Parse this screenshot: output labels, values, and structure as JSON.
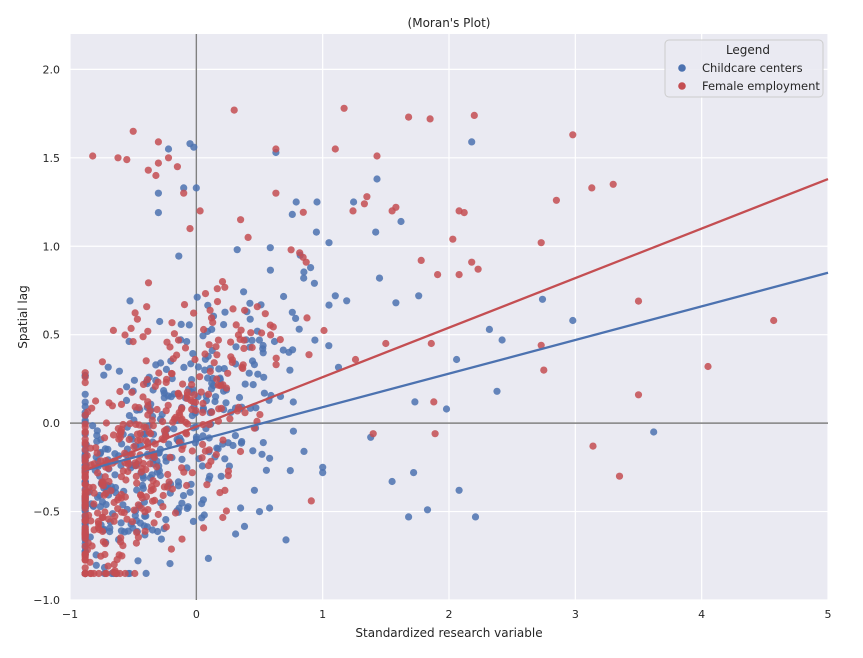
{
  "chart_data": {
    "type": "scatter",
    "title": "(Moran's Plot)",
    "xlabel": "Standardized research variable",
    "ylabel": "Spatial lag",
    "xlim": [
      -1,
      5
    ],
    "ylim": [
      -1.0,
      2.2
    ],
    "xticks": [
      -1,
      0,
      1,
      2,
      3,
      4,
      5
    ],
    "xtick_labels": [
      "−1",
      "0",
      "1",
      "2",
      "3",
      "4",
      "5"
    ],
    "yticks": [
      -1.0,
      -0.5,
      0.0,
      0.5,
      1.0,
      1.5,
      2.0
    ],
    "ytick_labels": [
      "−1.0",
      "−0.5",
      "0.0",
      "0.5",
      "1.0",
      "1.5",
      "2.0"
    ],
    "grid": true,
    "background_color": "#eaeaf2",
    "reference_lines": {
      "x": 0,
      "y": 0,
      "color": "#808080"
    },
    "legend": {
      "title": "Legend",
      "position": "top-right",
      "entries": [
        "Childcare centers",
        "Female employment"
      ]
    },
    "series": [
      {
        "name": "Childcare centers",
        "color": "#4c72b0",
        "fit_line": {
          "slope": 0.19,
          "intercept": -0.1,
          "x_range": [
            -0.9,
            5.0
          ]
        },
        "cluster": {
          "n": 430,
          "x_mean": -0.35,
          "x_sd": 0.55,
          "seed": 11
        },
        "points": [
          [
            -0.05,
            1.58
          ],
          [
            -0.02,
            1.56
          ],
          [
            0.63,
            1.53
          ],
          [
            2.18,
            1.59
          ],
          [
            1.43,
            1.38
          ],
          [
            -0.22,
            1.55
          ],
          [
            -0.3,
            1.3
          ],
          [
            -0.1,
            1.33
          ],
          [
            0.0,
            1.33
          ],
          [
            0.76,
            1.18
          ],
          [
            1.62,
            1.14
          ],
          [
            -0.3,
            1.19
          ],
          [
            0.95,
            1.08
          ],
          [
            1.05,
            1.02
          ],
          [
            1.42,
            1.08
          ],
          [
            0.85,
            0.82
          ],
          [
            1.1,
            0.72
          ],
          [
            1.45,
            0.82
          ],
          [
            1.76,
            0.72
          ],
          [
            1.58,
            0.68
          ],
          [
            2.32,
            0.53
          ],
          [
            2.42,
            0.47
          ],
          [
            2.74,
            0.7
          ],
          [
            2.98,
            0.58
          ],
          [
            2.06,
            0.36
          ],
          [
            1.73,
            0.12
          ],
          [
            1.98,
            0.08
          ],
          [
            2.38,
            0.18
          ],
          [
            3.62,
            -0.05
          ],
          [
            1.38,
            -0.08
          ],
          [
            1.72,
            -0.28
          ],
          [
            1.55,
            -0.33
          ],
          [
            1.68,
            -0.53
          ],
          [
            1.83,
            -0.49
          ],
          [
            2.08,
            -0.38
          ],
          [
            2.21,
            -0.53
          ],
          [
            0.71,
            -0.66
          ],
          [
            0.5,
            -0.5
          ],
          [
            0.58,
            -0.48
          ],
          [
            0.46,
            -0.38
          ],
          [
            1.0,
            -0.28
          ],
          [
            1.0,
            -0.25
          ],
          [
            0.35,
            -0.48
          ],
          [
            0.53,
            -0.11
          ]
        ]
      },
      {
        "name": "Female employment",
        "color": "#c44e52",
        "fit_line": {
          "slope": 0.28,
          "intercept": -0.02,
          "x_range": [
            -0.9,
            5.0
          ]
        },
        "cluster": {
          "n": 430,
          "x_mean": -0.4,
          "x_sd": 0.48,
          "seed": 29
        },
        "points": [
          [
            -0.5,
            1.65
          ],
          [
            -0.62,
            1.5
          ],
          [
            -0.55,
            1.49
          ],
          [
            -0.82,
            1.51
          ],
          [
            -0.3,
            1.59
          ],
          [
            -0.22,
            1.5
          ],
          [
            -0.3,
            1.47
          ],
          [
            -0.15,
            1.45
          ],
          [
            -0.32,
            1.4
          ],
          [
            -0.38,
            1.43
          ],
          [
            0.3,
            1.77
          ],
          [
            1.17,
            1.78
          ],
          [
            1.68,
            1.73
          ],
          [
            1.85,
            1.72
          ],
          [
            2.2,
            1.74
          ],
          [
            1.1,
            1.55
          ],
          [
            1.43,
            1.51
          ],
          [
            0.63,
            1.55
          ],
          [
            0.63,
            1.3
          ],
          [
            1.35,
            1.28
          ],
          [
            1.33,
            1.24
          ],
          [
            1.58,
            1.22
          ],
          [
            1.24,
            1.2
          ],
          [
            1.55,
            1.2
          ],
          [
            2.08,
            1.2
          ],
          [
            2.12,
            1.19
          ],
          [
            2.85,
            1.26
          ],
          [
            2.98,
            1.63
          ],
          [
            3.13,
            1.33
          ],
          [
            3.3,
            1.35
          ],
          [
            2.73,
            1.02
          ],
          [
            2.03,
            1.04
          ],
          [
            1.78,
            0.92
          ],
          [
            1.91,
            0.84
          ],
          [
            2.08,
            0.84
          ],
          [
            2.23,
            0.87
          ],
          [
            2.18,
            0.91
          ],
          [
            3.5,
            0.69
          ],
          [
            4.57,
            0.58
          ],
          [
            4.05,
            0.32
          ],
          [
            3.5,
            0.16
          ],
          [
            2.73,
            0.44
          ],
          [
            2.75,
            0.3
          ],
          [
            1.88,
            0.12
          ],
          [
            1.89,
            -0.06
          ],
          [
            3.14,
            -0.13
          ],
          [
            3.35,
            -0.3
          ],
          [
            1.86,
            0.45
          ],
          [
            1.5,
            0.45
          ],
          [
            1.26,
            0.36
          ],
          [
            1.4,
            -0.06
          ],
          [
            0.91,
            -0.44
          ],
          [
            0.35,
            1.15
          ],
          [
            -0.1,
            1.3
          ],
          [
            0.03,
            1.2
          ],
          [
            -0.05,
            1.1
          ],
          [
            0.75,
            0.98
          ],
          [
            0.87,
            0.91
          ]
        ]
      }
    ]
  }
}
